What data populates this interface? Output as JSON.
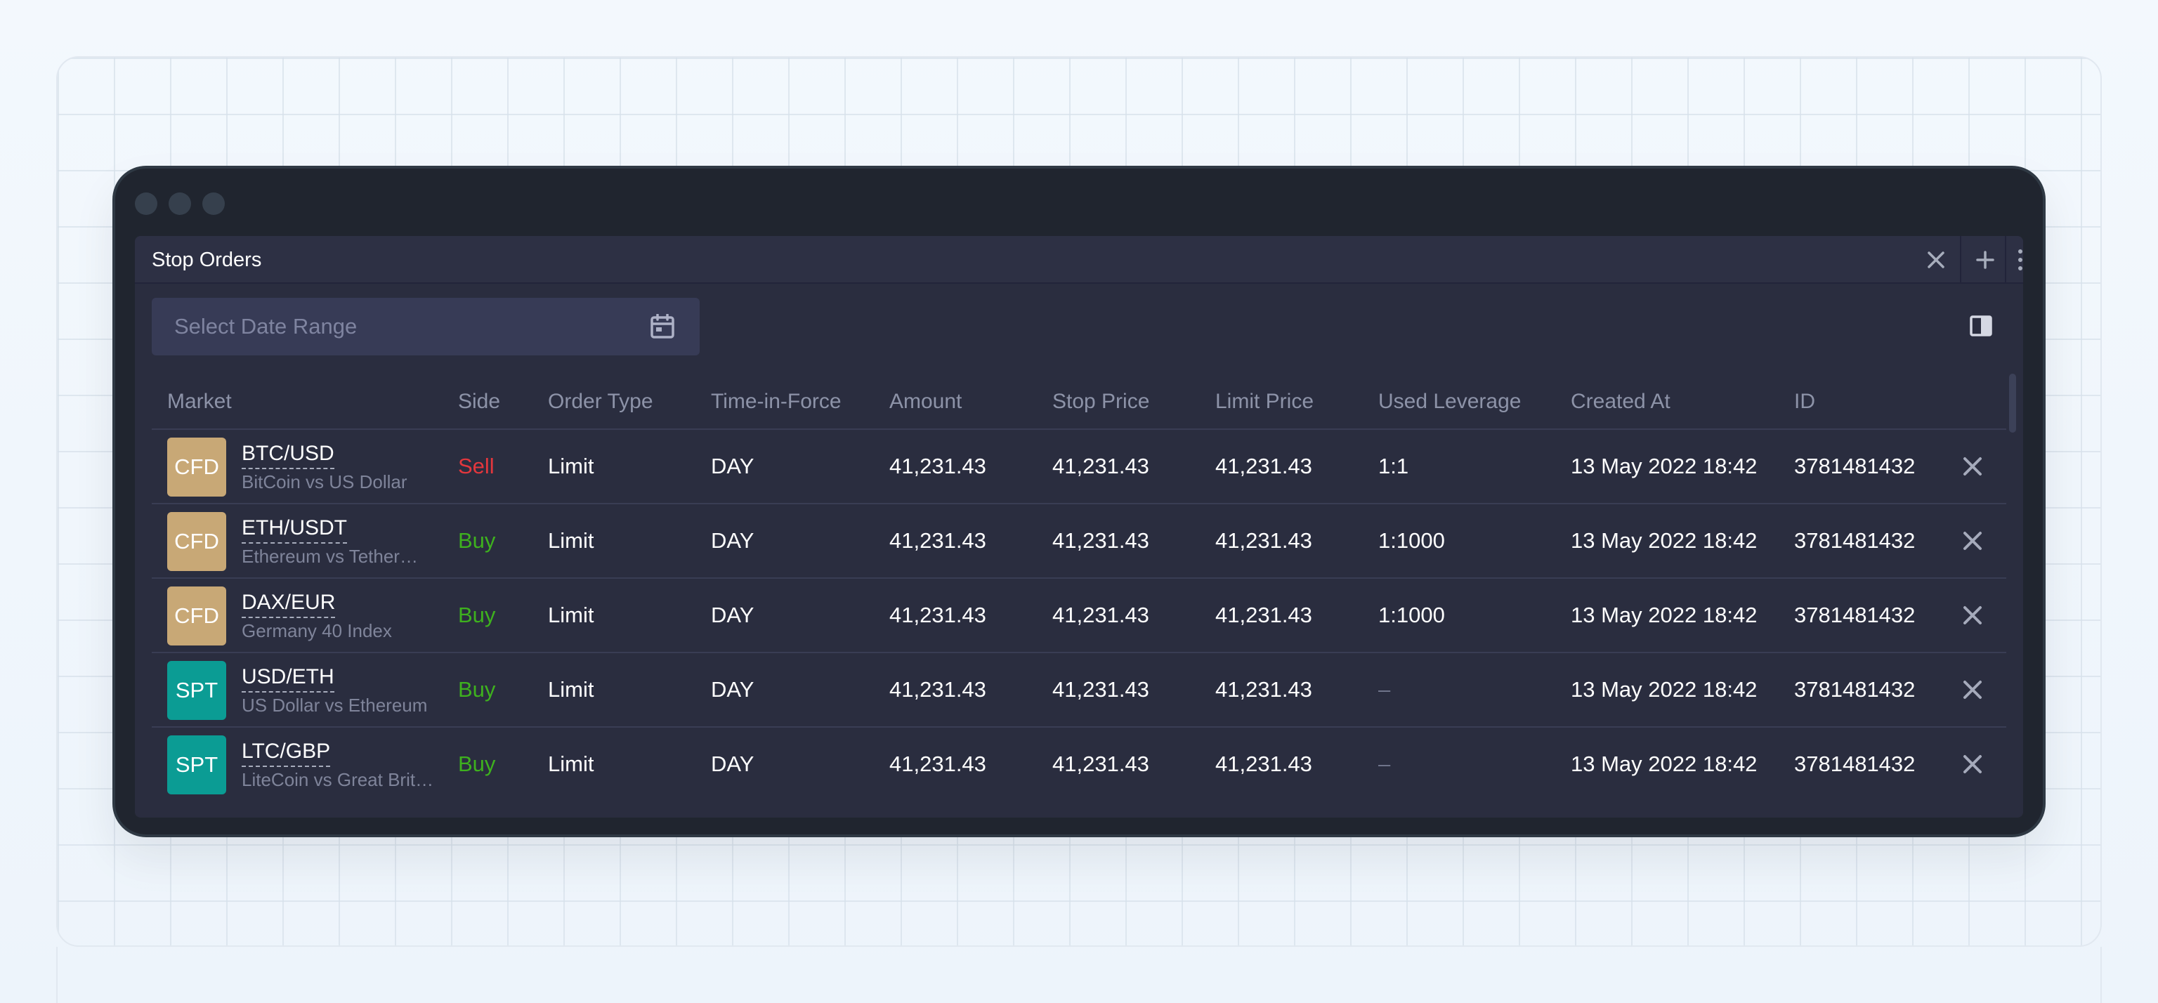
{
  "panel": {
    "title": "Stop Orders",
    "date_range_placeholder": "Select Date Range"
  },
  "columns": [
    "Market",
    "Side",
    "Order Type",
    "Time-in-Force",
    "Amount",
    "Stop Price",
    "Limit Price",
    "Used Leverage",
    "Created At",
    "ID"
  ],
  "orders": [
    {
      "badge": "CFD",
      "pair": "BTC/USD",
      "description": "BitCoin vs US Dollar",
      "side": "Sell",
      "order_type": "Limit",
      "time_in_force": "DAY",
      "amount": "41,231.43",
      "stop_price": "41,231.43",
      "limit_price": "41,231.43",
      "used_leverage": "1:1",
      "created_at": "13 May 2022 18:42",
      "id": "3781481432"
    },
    {
      "badge": "CFD",
      "pair": "ETH/USDT",
      "description": "Ethereum vs Tether…",
      "side": "Buy",
      "order_type": "Limit",
      "time_in_force": "DAY",
      "amount": "41,231.43",
      "stop_price": "41,231.43",
      "limit_price": "41,231.43",
      "used_leverage": "1:1000",
      "created_at": "13 May 2022 18:42",
      "id": "3781481432"
    },
    {
      "badge": "CFD",
      "pair": "DAX/EUR",
      "description": "Germany 40 Index",
      "side": "Buy",
      "order_type": "Limit",
      "time_in_force": "DAY",
      "amount": "41,231.43",
      "stop_price": "41,231.43",
      "limit_price": "41,231.43",
      "used_leverage": "1:1000",
      "created_at": "13 May 2022 18:42",
      "id": "3781481432"
    },
    {
      "badge": "SPT",
      "pair": "USD/ETH",
      "description": "US Dollar vs Ethereum",
      "side": "Buy",
      "order_type": "Limit",
      "time_in_force": "DAY",
      "amount": "41,231.43",
      "stop_price": "41,231.43",
      "limit_price": "41,231.43",
      "used_leverage": "–",
      "created_at": "13 May 2022 18:42",
      "id": "3781481432"
    },
    {
      "badge": "SPT",
      "pair": "LTC/GBP",
      "description": "LiteCoin vs Great Brit…",
      "side": "Buy",
      "order_type": "Limit",
      "time_in_force": "DAY",
      "amount": "41,231.43",
      "stop_price": "41,231.43",
      "limit_price": "41,231.43",
      "used_leverage": "–",
      "created_at": "13 May 2022 18:42",
      "id": "3781481432"
    }
  ],
  "colors": {
    "cfd_badge": "#c8a876",
    "spt_badge": "#0b9c94",
    "buy": "#3eb11e",
    "sell": "#e3373d",
    "panel_bg": "#2a2d3f"
  },
  "icons": {
    "calendar": "calendar-icon",
    "columns": "columns-icon",
    "close": "close-icon",
    "add": "plus-icon",
    "drag": "drag-handle-icon"
  }
}
